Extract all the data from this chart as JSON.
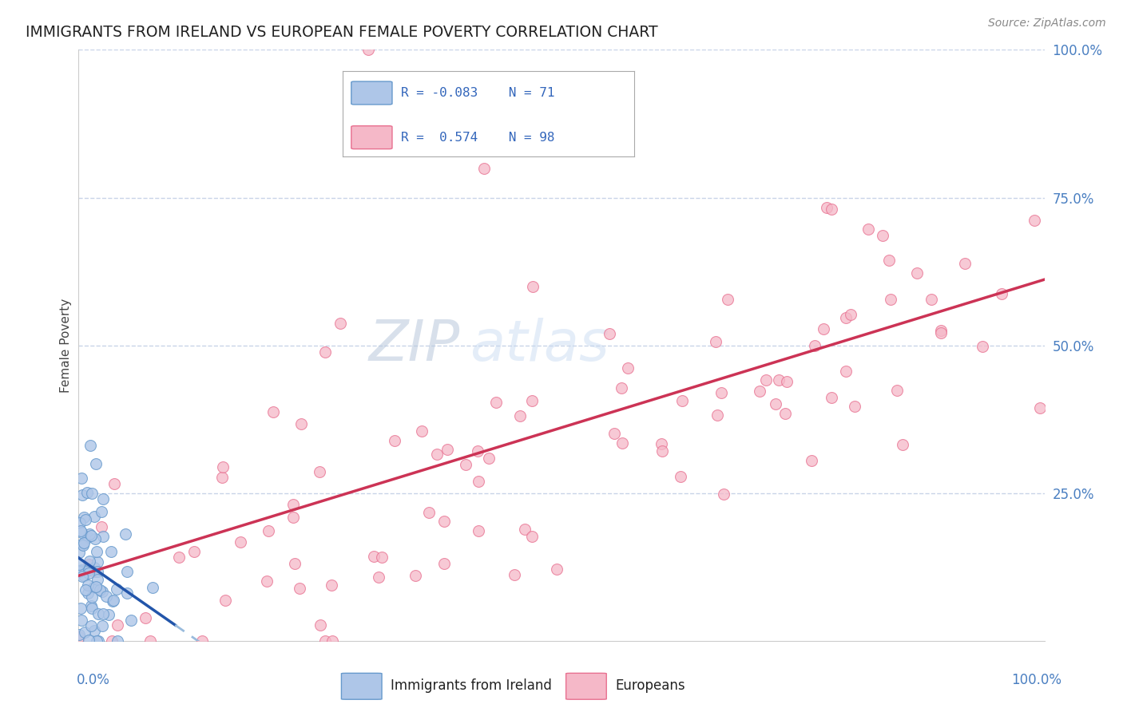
{
  "title": "IMMIGRANTS FROM IRELAND VS EUROPEAN FEMALE POVERTY CORRELATION CHART",
  "source": "Source: ZipAtlas.com",
  "ylabel": "Female Poverty",
  "blue_R": -0.083,
  "blue_N": 71,
  "pink_R": 0.574,
  "pink_N": 98,
  "blue_color": "#aec6e8",
  "pink_color": "#f5b8c8",
  "blue_edge_color": "#6699cc",
  "pink_edge_color": "#e87090",
  "blue_trend_color": "#2255aa",
  "pink_trend_color": "#cc3355",
  "blue_dash_color": "#99bbdd",
  "background_color": "#ffffff",
  "grid_color": "#c8d4e8",
  "xlim": [
    0,
    100
  ],
  "ylim": [
    0,
    100
  ],
  "marker_size": 100,
  "watermark_zip_color": "#c0cce0",
  "watermark_atlas_color": "#c8d8f0"
}
